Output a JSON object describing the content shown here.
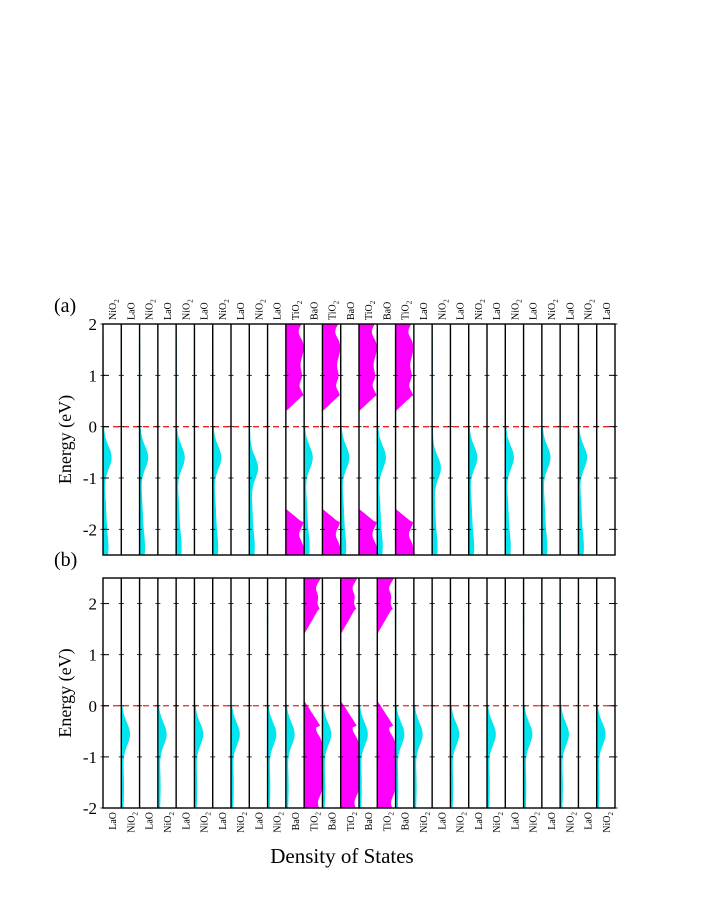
{
  "figure": {
    "xlabel": "Density of States",
    "colors": {
      "ni_layer": "#00e5ee",
      "ti_layer": "#ff00ff",
      "fermi_line": "#ee2222",
      "frame": "#000000"
    }
  },
  "chart_data": [
    {
      "type": "area",
      "panel_label": "(a)",
      "ylabel": "Energy (eV)",
      "ylim": [
        -2.5,
        2.0
      ],
      "yticks": [
        -2,
        -1,
        0,
        1,
        2
      ],
      "fermi_level": 0,
      "layer_label_position": "top",
      "layers": [
        {
          "name": "NiO",
          "sub": "2"
        },
        {
          "name": "LaO",
          "sub": ""
        },
        {
          "name": "NiO",
          "sub": "2"
        },
        {
          "name": "LaO",
          "sub": ""
        },
        {
          "name": "NiO",
          "sub": "2"
        },
        {
          "name": "LaO",
          "sub": ""
        },
        {
          "name": "NiO",
          "sub": "2"
        },
        {
          "name": "LaO",
          "sub": ""
        },
        {
          "name": "NiO",
          "sub": "2"
        },
        {
          "name": "LaO",
          "sub": ""
        },
        {
          "name": "TiO",
          "sub": "2"
        },
        {
          "name": "BaO",
          "sub": ""
        },
        {
          "name": "TiO",
          "sub": "2"
        },
        {
          "name": "BaO",
          "sub": ""
        },
        {
          "name": "TiO",
          "sub": "2"
        },
        {
          "name": "BaO",
          "sub": ""
        },
        {
          "name": "TiO",
          "sub": "2"
        },
        {
          "name": "LaO",
          "sub": ""
        },
        {
          "name": "NiO",
          "sub": "2"
        },
        {
          "name": "LaO",
          "sub": ""
        },
        {
          "name": "NiO",
          "sub": "2"
        },
        {
          "name": "LaO",
          "sub": ""
        },
        {
          "name": "NiO",
          "sub": "2"
        },
        {
          "name": "LaO",
          "sub": ""
        },
        {
          "name": "NiO",
          "sub": "2"
        },
        {
          "name": "LaO",
          "sub": ""
        },
        {
          "name": "NiO",
          "sub": "2"
        },
        {
          "name": "LaO",
          "sub": ""
        }
      ]
    },
    {
      "type": "area",
      "panel_label": "(b)",
      "ylabel": "Energy (eV)",
      "ylim": [
        -2.0,
        2.5
      ],
      "yticks": [
        -2,
        -1,
        0,
        1,
        2
      ],
      "fermi_level": 0,
      "layer_label_position": "bottom",
      "layers": [
        {
          "name": "LaO",
          "sub": ""
        },
        {
          "name": "NiO",
          "sub": "2"
        },
        {
          "name": "LaO",
          "sub": ""
        },
        {
          "name": "NiO",
          "sub": "2"
        },
        {
          "name": "LaO",
          "sub": ""
        },
        {
          "name": "NiO",
          "sub": "2"
        },
        {
          "name": "LaO",
          "sub": ""
        },
        {
          "name": "NiO",
          "sub": "2"
        },
        {
          "name": "LaO",
          "sub": ""
        },
        {
          "name": "NiO",
          "sub": "2"
        },
        {
          "name": "BaO",
          "sub": ""
        },
        {
          "name": "TiO",
          "sub": "2"
        },
        {
          "name": "BaO",
          "sub": ""
        },
        {
          "name": "TiO",
          "sub": "2"
        },
        {
          "name": "BaO",
          "sub": ""
        },
        {
          "name": "TiO",
          "sub": "2"
        },
        {
          "name": "BaO",
          "sub": ""
        },
        {
          "name": "NiO",
          "sub": "2"
        },
        {
          "name": "LaO",
          "sub": ""
        },
        {
          "name": "NiO",
          "sub": "2"
        },
        {
          "name": "LaO",
          "sub": ""
        },
        {
          "name": "NiO",
          "sub": "2"
        },
        {
          "name": "LaO",
          "sub": ""
        },
        {
          "name": "NiO",
          "sub": "2"
        },
        {
          "name": "LaO",
          "sub": ""
        },
        {
          "name": "NiO",
          "sub": "2"
        },
        {
          "name": "LaO",
          "sub": ""
        },
        {
          "name": "NiO",
          "sub": "2"
        }
      ]
    }
  ]
}
